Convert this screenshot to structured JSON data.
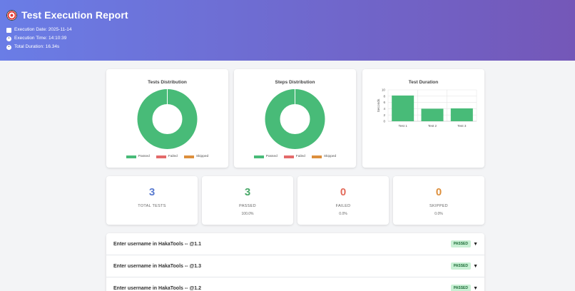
{
  "header": {
    "title": "Test Execution Report",
    "execution_date": "Execution Date: 2025-11-14",
    "execution_time": "Execution Time: 14:10:39",
    "total_duration": "Total Duration: 16.34s"
  },
  "charts": {
    "legend": [
      "Passed",
      "Failed",
      "Skipped"
    ],
    "colors": {
      "passed": "#48bb78",
      "failed": "#e36a6a",
      "skipped": "#dd8f3c"
    }
  },
  "chart_data": [
    {
      "type": "pie",
      "title": "Tests Distribution",
      "labels": [
        "Passed",
        "Failed",
        "Skipped"
      ],
      "values": [
        3,
        0,
        0
      ]
    },
    {
      "type": "pie",
      "title": "Steps Distribution",
      "labels": [
        "Passed",
        "Failed",
        "Skipped"
      ],
      "values": [
        1,
        0,
        0
      ]
    },
    {
      "type": "bar",
      "title": "Test Duration",
      "categories": [
        "Test 1",
        "Test 2",
        "Test 3"
      ],
      "values": [
        8.2,
        4.0,
        4.1
      ],
      "ylabel": "Seconds",
      "ylim": [
        0,
        10
      ],
      "yticks": [
        0,
        2,
        4,
        6,
        8,
        10
      ]
    }
  ],
  "stats": [
    {
      "value": "3",
      "label": "TOTAL TESTS",
      "sub": "",
      "color": "#5a7bd0"
    },
    {
      "value": "3",
      "label": "PASSED",
      "sub": "100.0%",
      "color": "#48a868"
    },
    {
      "value": "0",
      "label": "FAILED",
      "sub": "0.0%",
      "color": "#e36a5a"
    },
    {
      "value": "0",
      "label": "SKIPPED",
      "sub": "0.0%",
      "color": "#dd8f3c"
    }
  ],
  "tests": [
    {
      "name": "Enter username in HakaTools -- @1.1",
      "status": "PASSED"
    },
    {
      "name": "Enter username in HakaTools -- @1.3",
      "status": "PASSED"
    },
    {
      "name": "Enter username in HakaTools -- @1.2",
      "status": "PASSED"
    }
  ]
}
